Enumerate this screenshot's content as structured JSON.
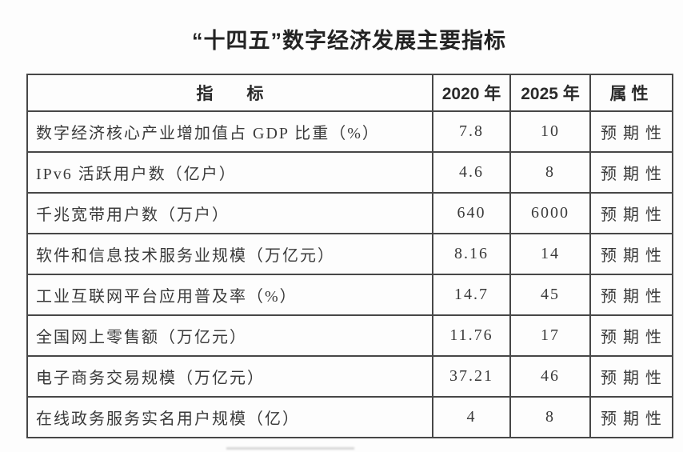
{
  "title": "“十四五”数字经济发展主要指标",
  "table": {
    "headers": {
      "indicator": "指　　标",
      "y2020": "2020 年",
      "y2025": "2025 年",
      "attribute": "属性"
    },
    "rows": [
      {
        "indicator": "数字经济核心产业增加值占 GDP 比重（%）",
        "y2020": "7.8",
        "y2025": "10",
        "attribute": "预期性"
      },
      {
        "indicator": "IPv6 活跃用户数（亿户）",
        "y2020": "4.6",
        "y2025": "8",
        "attribute": "预期性"
      },
      {
        "indicator": "千兆宽带用户数（万户）",
        "y2020": "640",
        "y2025": "6000",
        "attribute": "预期性"
      },
      {
        "indicator": "软件和信息技术服务业规模（万亿元）",
        "y2020": "8.16",
        "y2025": "14",
        "attribute": "预期性"
      },
      {
        "indicator": "工业互联网平台应用普及率（%）",
        "y2020": "14.7",
        "y2025": "45",
        "attribute": "预期性"
      },
      {
        "indicator": "全国网上零售额（万亿元）",
        "y2020": "11.76",
        "y2025": "17",
        "attribute": "预期性"
      },
      {
        "indicator": "电子商务交易规模（万亿元）",
        "y2020": "37.21",
        "y2025": "46",
        "attribute": "预期性"
      },
      {
        "indicator": "在线政务服务实名用户规模（亿）",
        "y2020": "4",
        "y2025": "8",
        "attribute": "预期性"
      }
    ]
  },
  "colors": {
    "border": "#474747",
    "text": "#3a3a3a",
    "background": "#fdfdfd"
  }
}
